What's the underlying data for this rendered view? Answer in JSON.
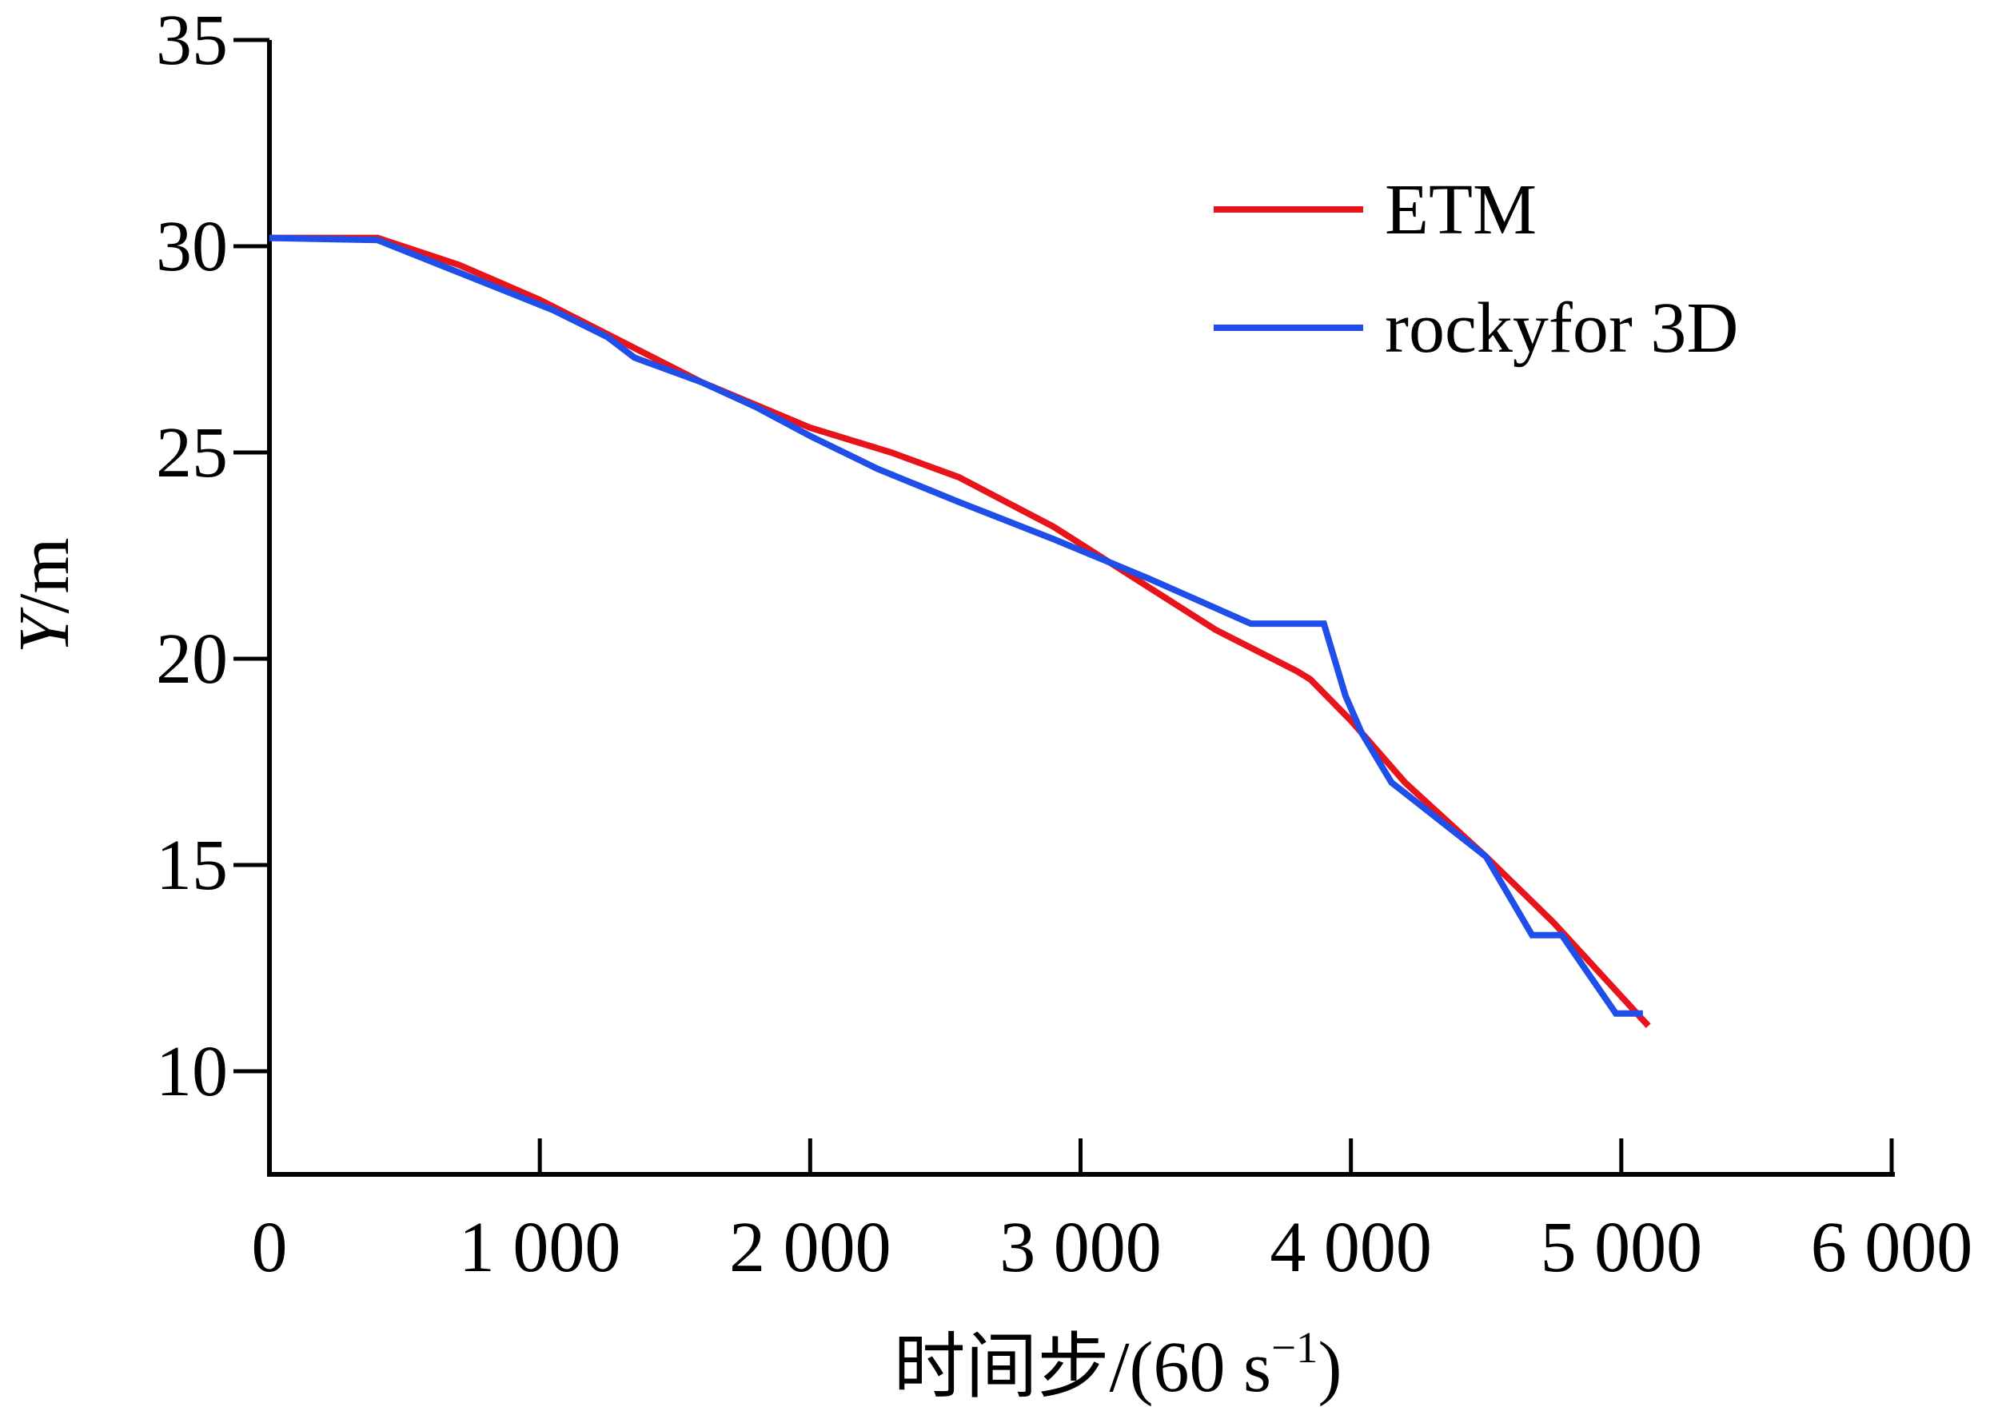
{
  "chart_data": {
    "type": "line",
    "xlabel": "时间步/(60 s",
    "xlabel_sup": "−1",
    "xlabel_close": ")",
    "ylabel_italic": "Y",
    "ylabel_rest": "/m",
    "xlim": [
      0,
      6000
    ],
    "ylim": [
      7.5,
      35
    ],
    "x_ticks": [
      0,
      1000,
      2000,
      3000,
      4000,
      5000,
      6000
    ],
    "x_tick_labels": [
      "0",
      "1 000",
      "2 000",
      "3 000",
      "4 000",
      "5 000",
      "6 000"
    ],
    "y_ticks": [
      10,
      15,
      20,
      25,
      30,
      35
    ],
    "y_tick_labels": [
      "10",
      "15",
      "20",
      "25",
      "30",
      "35"
    ],
    "grid": false,
    "legend_position": "top-right",
    "series": [
      {
        "name": "ETM",
        "color": "#e8141b",
        "x": [
          0,
          400,
          700,
          1000,
          1300,
          1600,
          2000,
          2300,
          2550,
          2900,
          3200,
          3500,
          3800,
          3850,
          4000,
          4200,
          4500,
          4750,
          5100
        ],
        "y": [
          30.2,
          30.2,
          29.55,
          28.7,
          27.7,
          26.7,
          25.6,
          25.0,
          24.4,
          23.2,
          21.95,
          20.7,
          19.7,
          19.5,
          18.5,
          17.0,
          15.2,
          13.6,
          11.1
        ]
      },
      {
        "name": "rockyfor 3D",
        "color": "#1f4fe8",
        "x": [
          0,
          400,
          1050,
          1250,
          1350,
          1600,
          1800,
          2000,
          2250,
          2550,
          2900,
          3250,
          3630,
          3900,
          3980,
          4040,
          4150,
          4500,
          4670,
          4780,
          4980,
          5080
        ],
        "y": [
          30.2,
          30.15,
          28.45,
          27.8,
          27.3,
          26.7,
          26.1,
          25.4,
          24.6,
          23.8,
          22.9,
          21.95,
          20.85,
          20.85,
          19.1,
          18.2,
          17.0,
          15.2,
          13.3,
          13.3,
          11.4,
          11.4
        ]
      }
    ]
  }
}
